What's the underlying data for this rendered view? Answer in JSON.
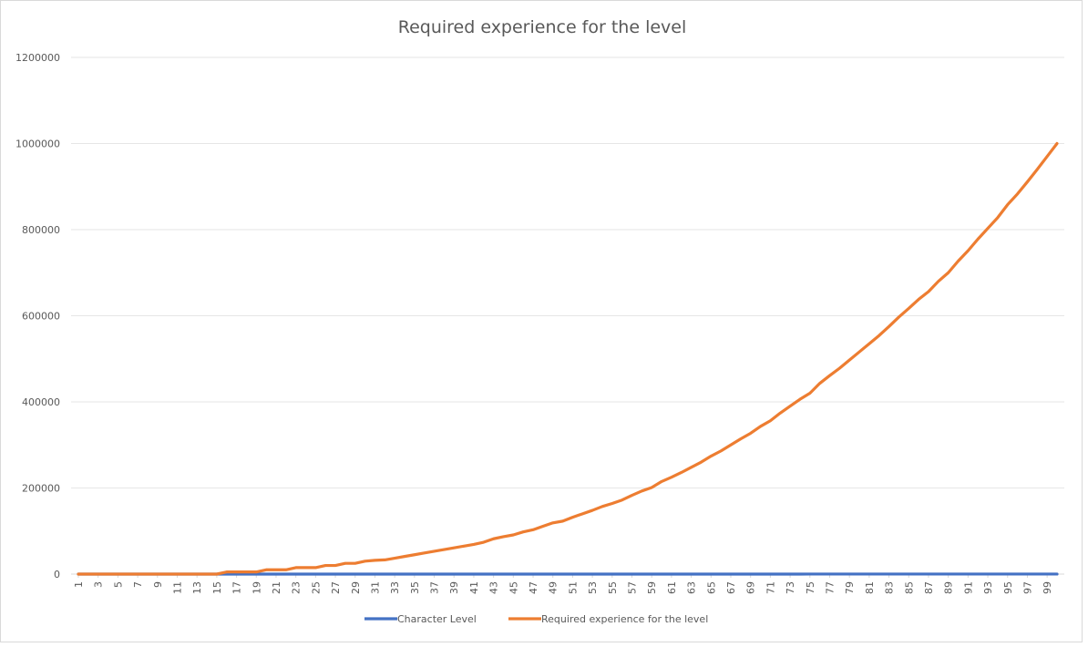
{
  "chart_data": {
    "type": "line",
    "title": "Required experience for the level",
    "xlabel": "",
    "ylabel": "",
    "ylim": [
      0,
      1200000
    ],
    "yticks": [
      0,
      200000,
      400000,
      600000,
      800000,
      1000000,
      1200000
    ],
    "ytick_labels": [
      "0",
      "200000",
      "400000",
      "600000",
      "800000",
      "1000000",
      "1200000"
    ],
    "x": [
      1,
      2,
      3,
      4,
      5,
      6,
      7,
      8,
      9,
      10,
      11,
      12,
      13,
      14,
      15,
      16,
      17,
      18,
      19,
      20,
      21,
      22,
      23,
      24,
      25,
      26,
      27,
      28,
      29,
      30,
      31,
      32,
      33,
      34,
      35,
      36,
      37,
      38,
      39,
      40,
      41,
      42,
      43,
      44,
      45,
      46,
      47,
      48,
      49,
      50,
      51,
      52,
      53,
      54,
      55,
      56,
      57,
      58,
      59,
      60,
      61,
      62,
      63,
      64,
      65,
      66,
      67,
      68,
      69,
      70,
      71,
      72,
      73,
      74,
      75,
      76,
      77,
      78,
      79,
      80,
      81,
      82,
      83,
      84,
      85,
      86,
      87,
      88,
      89,
      90,
      91,
      92,
      93,
      94,
      95,
      96,
      97,
      98,
      99,
      100
    ],
    "xtick_labels": [
      "1",
      "3",
      "5",
      "7",
      "9",
      "11",
      "13",
      "15",
      "17",
      "19",
      "21",
      "23",
      "25",
      "27",
      "29",
      "31",
      "33",
      "35",
      "37",
      "39",
      "41",
      "43",
      "45",
      "47",
      "49",
      "51",
      "53",
      "55",
      "57",
      "59",
      "61",
      "63",
      "65",
      "67",
      "69",
      "71",
      "73",
      "75",
      "77",
      "79",
      "81",
      "83",
      "85",
      "87",
      "89",
      "91",
      "93",
      "95",
      "97",
      "99"
    ],
    "grid": true,
    "legend_position": "bottom",
    "series": [
      {
        "name": "Character Level",
        "color": "#4472C4",
        "values": [
          1,
          2,
          3,
          4,
          5,
          6,
          7,
          8,
          9,
          10,
          11,
          12,
          13,
          14,
          15,
          16,
          17,
          18,
          19,
          20,
          21,
          22,
          23,
          24,
          25,
          26,
          27,
          28,
          29,
          30,
          31,
          32,
          33,
          34,
          35,
          36,
          37,
          38,
          39,
          40,
          41,
          42,
          43,
          44,
          45,
          46,
          47,
          48,
          49,
          50,
          51,
          52,
          53,
          54,
          55,
          56,
          57,
          58,
          59,
          60,
          61,
          62,
          63,
          64,
          65,
          66,
          67,
          68,
          69,
          70,
          71,
          72,
          73,
          74,
          75,
          76,
          77,
          78,
          79,
          80,
          81,
          82,
          83,
          84,
          85,
          86,
          87,
          88,
          89,
          90,
          91,
          92,
          93,
          94,
          95,
          96,
          97,
          98,
          99,
          100
        ]
      },
      {
        "name": "Required experience for the level",
        "color": "#ED7D31",
        "values": [
          0,
          0,
          0,
          0,
          0,
          0,
          0,
          0,
          0,
          0,
          0,
          0,
          0,
          0,
          0,
          5000,
          5000,
          5000,
          5000,
          10000,
          10000,
          10000,
          15000,
          15000,
          15000,
          20000,
          20000,
          25000,
          25000,
          30000,
          32000,
          33000,
          37000,
          41000,
          45000,
          49000,
          53000,
          57000,
          61000,
          65000,
          69000,
          74000,
          82000,
          87000,
          91000,
          98000,
          103000,
          111000,
          119000,
          123000,
          132000,
          140000,
          148000,
          157000,
          164000,
          172000,
          183000,
          193000,
          201000,
          215000,
          225000,
          236000,
          248000,
          260000,
          274000,
          286000,
          300000,
          314000,
          327000,
          343000,
          356000,
          374000,
          390000,
          406000,
          420000,
          443000,
          461000,
          478000,
          497000,
          516000,
          535000,
          554000,
          575000,
          597000,
          617000,
          638000,
          656000,
          680000,
          700000,
          727000,
          751000,
          778000,
          803000,
          828000,
          858000,
          883000,
          911000,
          940000,
          970000,
          1000000
        ]
      }
    ]
  }
}
